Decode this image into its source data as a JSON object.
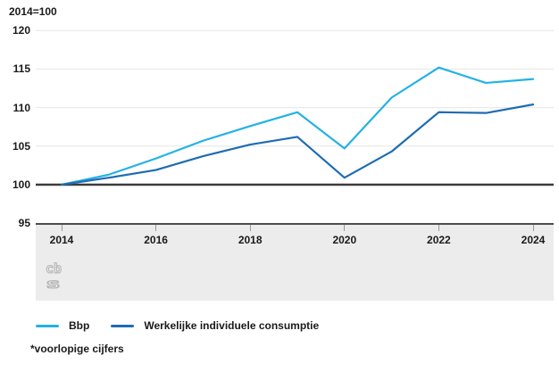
{
  "header": {
    "unit_label": "2014=100"
  },
  "chart_data": {
    "type": "line",
    "title": "",
    "unit": "2014=100",
    "x": [
      2014,
      2015,
      2016,
      2017,
      2018,
      2019,
      2020,
      2021,
      2022,
      2023,
      2024
    ],
    "x_tick_labels": [
      "2014",
      "2016",
      "2018",
      "2020",
      "2022",
      "2024"
    ],
    "y_ticks": [
      120,
      115,
      110,
      105,
      100,
      95
    ],
    "ylim": [
      95,
      120
    ],
    "baseline": 100,
    "grid": true,
    "legend_position": "bottom",
    "series": [
      {
        "name": "Bbp",
        "color": "#23b2e5",
        "values": [
          100,
          101.3,
          103.4,
          105.7,
          107.6,
          109.4,
          104.7,
          111.3,
          115.2,
          113.2,
          113.7
        ]
      },
      {
        "name": "Werkelijke individuele consumptie",
        "color": "#1f6bb4",
        "values": [
          100,
          100.9,
          101.9,
          103.7,
          105.2,
          106.2,
          100.9,
          104.3,
          109.4,
          109.3,
          110.4
        ]
      }
    ]
  },
  "legend": {
    "items": [
      {
        "label": "Bbp",
        "color": "#23b2e5"
      },
      {
        "label": "Werkelijke individuele consumptie",
        "color": "#1f6bb4"
      }
    ]
  },
  "footnote": "*voorlopige cijfers",
  "logo": {
    "name": "cbs-logo",
    "line1": "cb",
    "line2": "s"
  },
  "colors": {
    "grid": "#e6e6e6",
    "baseline_line": "#3d3d3d",
    "band_bg": "#ececec",
    "band_border": "#4d4d4d",
    "tick": "#999999",
    "text": "#1a1a1a",
    "logo": "#b5b5b5"
  }
}
